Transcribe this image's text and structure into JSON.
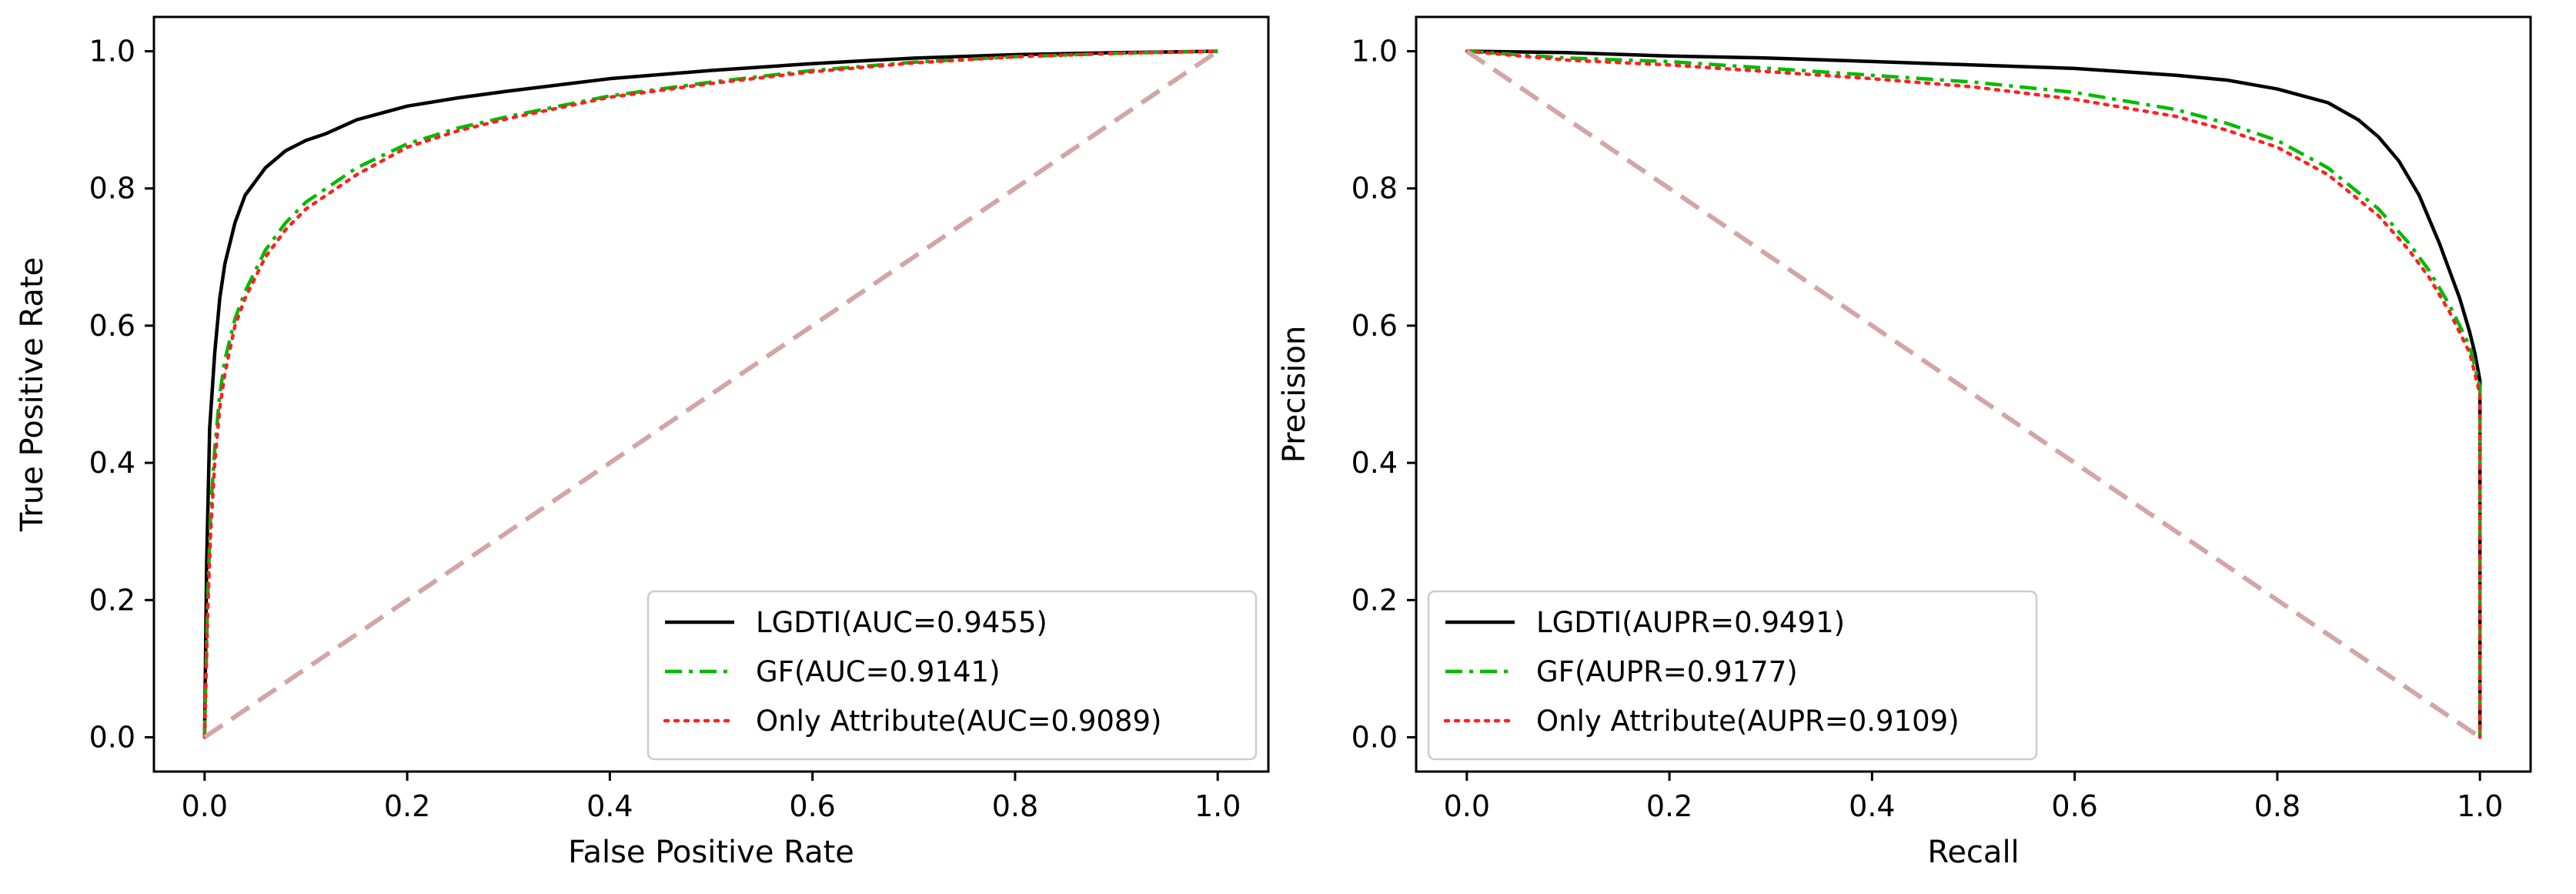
{
  "chart_data": [
    {
      "type": "line",
      "title": "",
      "xlabel": "False Positive Rate",
      "ylabel": "True Positive Rate",
      "xlim": [
        -0.05,
        1.05
      ],
      "ylim": [
        -0.05,
        1.05
      ],
      "xticks": [
        "0.0",
        "0.2",
        "0.4",
        "0.6",
        "0.8",
        "1.0"
      ],
      "yticks": [
        "0.0",
        "0.2",
        "0.4",
        "0.6",
        "0.8",
        "1.0"
      ],
      "legend_position": "lower-right",
      "series": [
        {
          "name": "LGDTI(AUC=0.9455)",
          "color": "#000000",
          "style": "solid",
          "x": [
            0,
            0.002,
            0.005,
            0.01,
            0.015,
            0.02,
            0.03,
            0.04,
            0.05,
            0.06,
            0.08,
            0.1,
            0.12,
            0.15,
            0.2,
            0.25,
            0.3,
            0.4,
            0.5,
            0.6,
            0.7,
            0.8,
            0.9,
            1.0
          ],
          "y": [
            0,
            0.25,
            0.45,
            0.56,
            0.64,
            0.69,
            0.75,
            0.79,
            0.81,
            0.83,
            0.855,
            0.87,
            0.88,
            0.9,
            0.92,
            0.932,
            0.942,
            0.96,
            0.972,
            0.982,
            0.99,
            0.995,
            0.998,
            1.0
          ]
        },
        {
          "name": "GF(AUC=0.9141)",
          "color": "#00bb00",
          "style": "dashdot",
          "x": [
            0,
            0.003,
            0.006,
            0.01,
            0.015,
            0.02,
            0.03,
            0.04,
            0.05,
            0.06,
            0.08,
            0.1,
            0.12,
            0.15,
            0.2,
            0.25,
            0.3,
            0.4,
            0.5,
            0.6,
            0.7,
            0.8,
            0.9,
            1.0
          ],
          "y": [
            0,
            0.2,
            0.33,
            0.42,
            0.5,
            0.55,
            0.61,
            0.65,
            0.68,
            0.71,
            0.75,
            0.78,
            0.8,
            0.83,
            0.865,
            0.888,
            0.905,
            0.935,
            0.955,
            0.972,
            0.984,
            0.992,
            0.997,
            1.0
          ]
        },
        {
          "name": "Only Attribute(AUC=0.9089)",
          "color": "#ff2020",
          "style": "dotted",
          "x": [
            0,
            0.003,
            0.006,
            0.01,
            0.015,
            0.02,
            0.03,
            0.04,
            0.05,
            0.06,
            0.08,
            0.1,
            0.12,
            0.15,
            0.2,
            0.25,
            0.3,
            0.4,
            0.5,
            0.6,
            0.7,
            0.8,
            0.9,
            1.0
          ],
          "y": [
            0,
            0.18,
            0.3,
            0.4,
            0.48,
            0.53,
            0.6,
            0.64,
            0.67,
            0.7,
            0.74,
            0.77,
            0.79,
            0.82,
            0.86,
            0.884,
            0.902,
            0.933,
            0.953,
            0.97,
            0.983,
            0.992,
            0.997,
            1.0
          ]
        },
        {
          "name": "",
          "color": "#d4a5a5",
          "style": "dashed",
          "x": [
            0,
            1
          ],
          "y": [
            0,
            1
          ]
        }
      ]
    },
    {
      "type": "line",
      "title": "",
      "xlabel": "Recall",
      "ylabel": "Precision",
      "xlim": [
        -0.05,
        1.05
      ],
      "ylim": [
        -0.05,
        1.05
      ],
      "xticks": [
        "0.0",
        "0.2",
        "0.4",
        "0.6",
        "0.8",
        "1.0"
      ],
      "yticks": [
        "0.0",
        "0.2",
        "0.4",
        "0.6",
        "0.8",
        "1.0"
      ],
      "legend_position": "lower-left",
      "series": [
        {
          "name": "LGDTI(AUPR=0.9491)",
          "color": "#000000",
          "style": "solid",
          "x": [
            0,
            0.1,
            0.2,
            0.3,
            0.4,
            0.5,
            0.6,
            0.7,
            0.75,
            0.8,
            0.85,
            0.88,
            0.9,
            0.92,
            0.94,
            0.96,
            0.98,
            0.99,
            0.995,
            1.0,
            1.0
          ],
          "y": [
            1.0,
            0.998,
            0.993,
            0.99,
            0.985,
            0.98,
            0.975,
            0.965,
            0.958,
            0.945,
            0.925,
            0.9,
            0.875,
            0.84,
            0.79,
            0.72,
            0.64,
            0.59,
            0.56,
            0.52,
            0.0
          ]
        },
        {
          "name": "GF(AUPR=0.9177)",
          "color": "#00bb00",
          "style": "dashdot",
          "x": [
            0,
            0.1,
            0.2,
            0.3,
            0.4,
            0.5,
            0.6,
            0.7,
            0.75,
            0.8,
            0.85,
            0.9,
            0.93,
            0.95,
            0.97,
            0.98,
            0.99,
            0.995,
            1.0,
            1.0
          ],
          "y": [
            1.0,
            0.99,
            0.985,
            0.975,
            0.965,
            0.955,
            0.94,
            0.915,
            0.895,
            0.87,
            0.83,
            0.77,
            0.72,
            0.68,
            0.63,
            0.6,
            0.57,
            0.54,
            0.51,
            0.0
          ]
        },
        {
          "name": "Only Attribute(AUPR=0.9109)",
          "color": "#ff2020",
          "style": "dotted",
          "x": [
            0,
            0.1,
            0.2,
            0.3,
            0.4,
            0.5,
            0.6,
            0.7,
            0.75,
            0.8,
            0.85,
            0.9,
            0.93,
            0.95,
            0.97,
            0.98,
            0.99,
            0.995,
            1.0,
            1.0
          ],
          "y": [
            1.0,
            0.987,
            0.98,
            0.97,
            0.96,
            0.948,
            0.93,
            0.905,
            0.885,
            0.86,
            0.82,
            0.76,
            0.71,
            0.67,
            0.62,
            0.59,
            0.56,
            0.53,
            0.5,
            0.0
          ]
        },
        {
          "name": "",
          "color": "#d4a5a5",
          "style": "dashed",
          "x": [
            0,
            1
          ],
          "y": [
            1,
            0
          ]
        }
      ]
    }
  ]
}
